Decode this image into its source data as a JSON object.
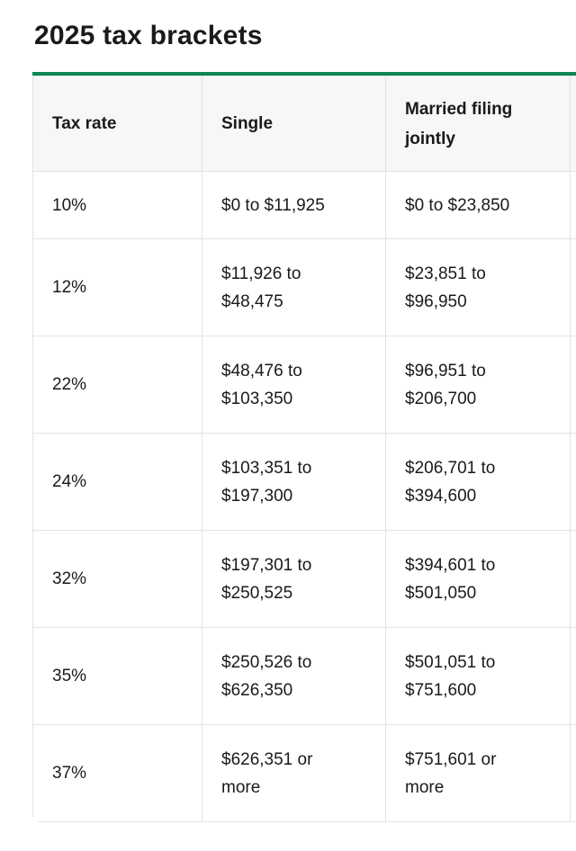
{
  "page": {
    "title": "2025 tax brackets"
  },
  "theme": {
    "accent_green": "#0d8656",
    "header_background": "#f7f7f7",
    "border_color": "#e3e3e3",
    "text_color": "#1a1a1a"
  },
  "table": {
    "columns": {
      "tax_rate": "Tax rate",
      "single": "Single",
      "married_filing_jointly": "Married filing jointly"
    },
    "rows": [
      {
        "rate": "10%",
        "single": "$0 to $11,925",
        "married": "$0 to $23,850"
      },
      {
        "rate": "12%",
        "single": "$11,926 to $48,475",
        "married": "$23,851 to $96,950"
      },
      {
        "rate": "22%",
        "single": "$48,476 to $103,350",
        "married": "$96,951 to $206,700"
      },
      {
        "rate": "24%",
        "single": "$103,351 to $197,300",
        "married": "$206,701 to $394,600"
      },
      {
        "rate": "32%",
        "single": "$197,301 to $250,525",
        "married": "$394,601 to $501,050"
      },
      {
        "rate": "35%",
        "single": "$250,526 to $626,350",
        "married": "$501,051 to $751,600"
      },
      {
        "rate": "37%",
        "single": "$626,351 or more",
        "married": "$751,601 or more"
      }
    ]
  }
}
